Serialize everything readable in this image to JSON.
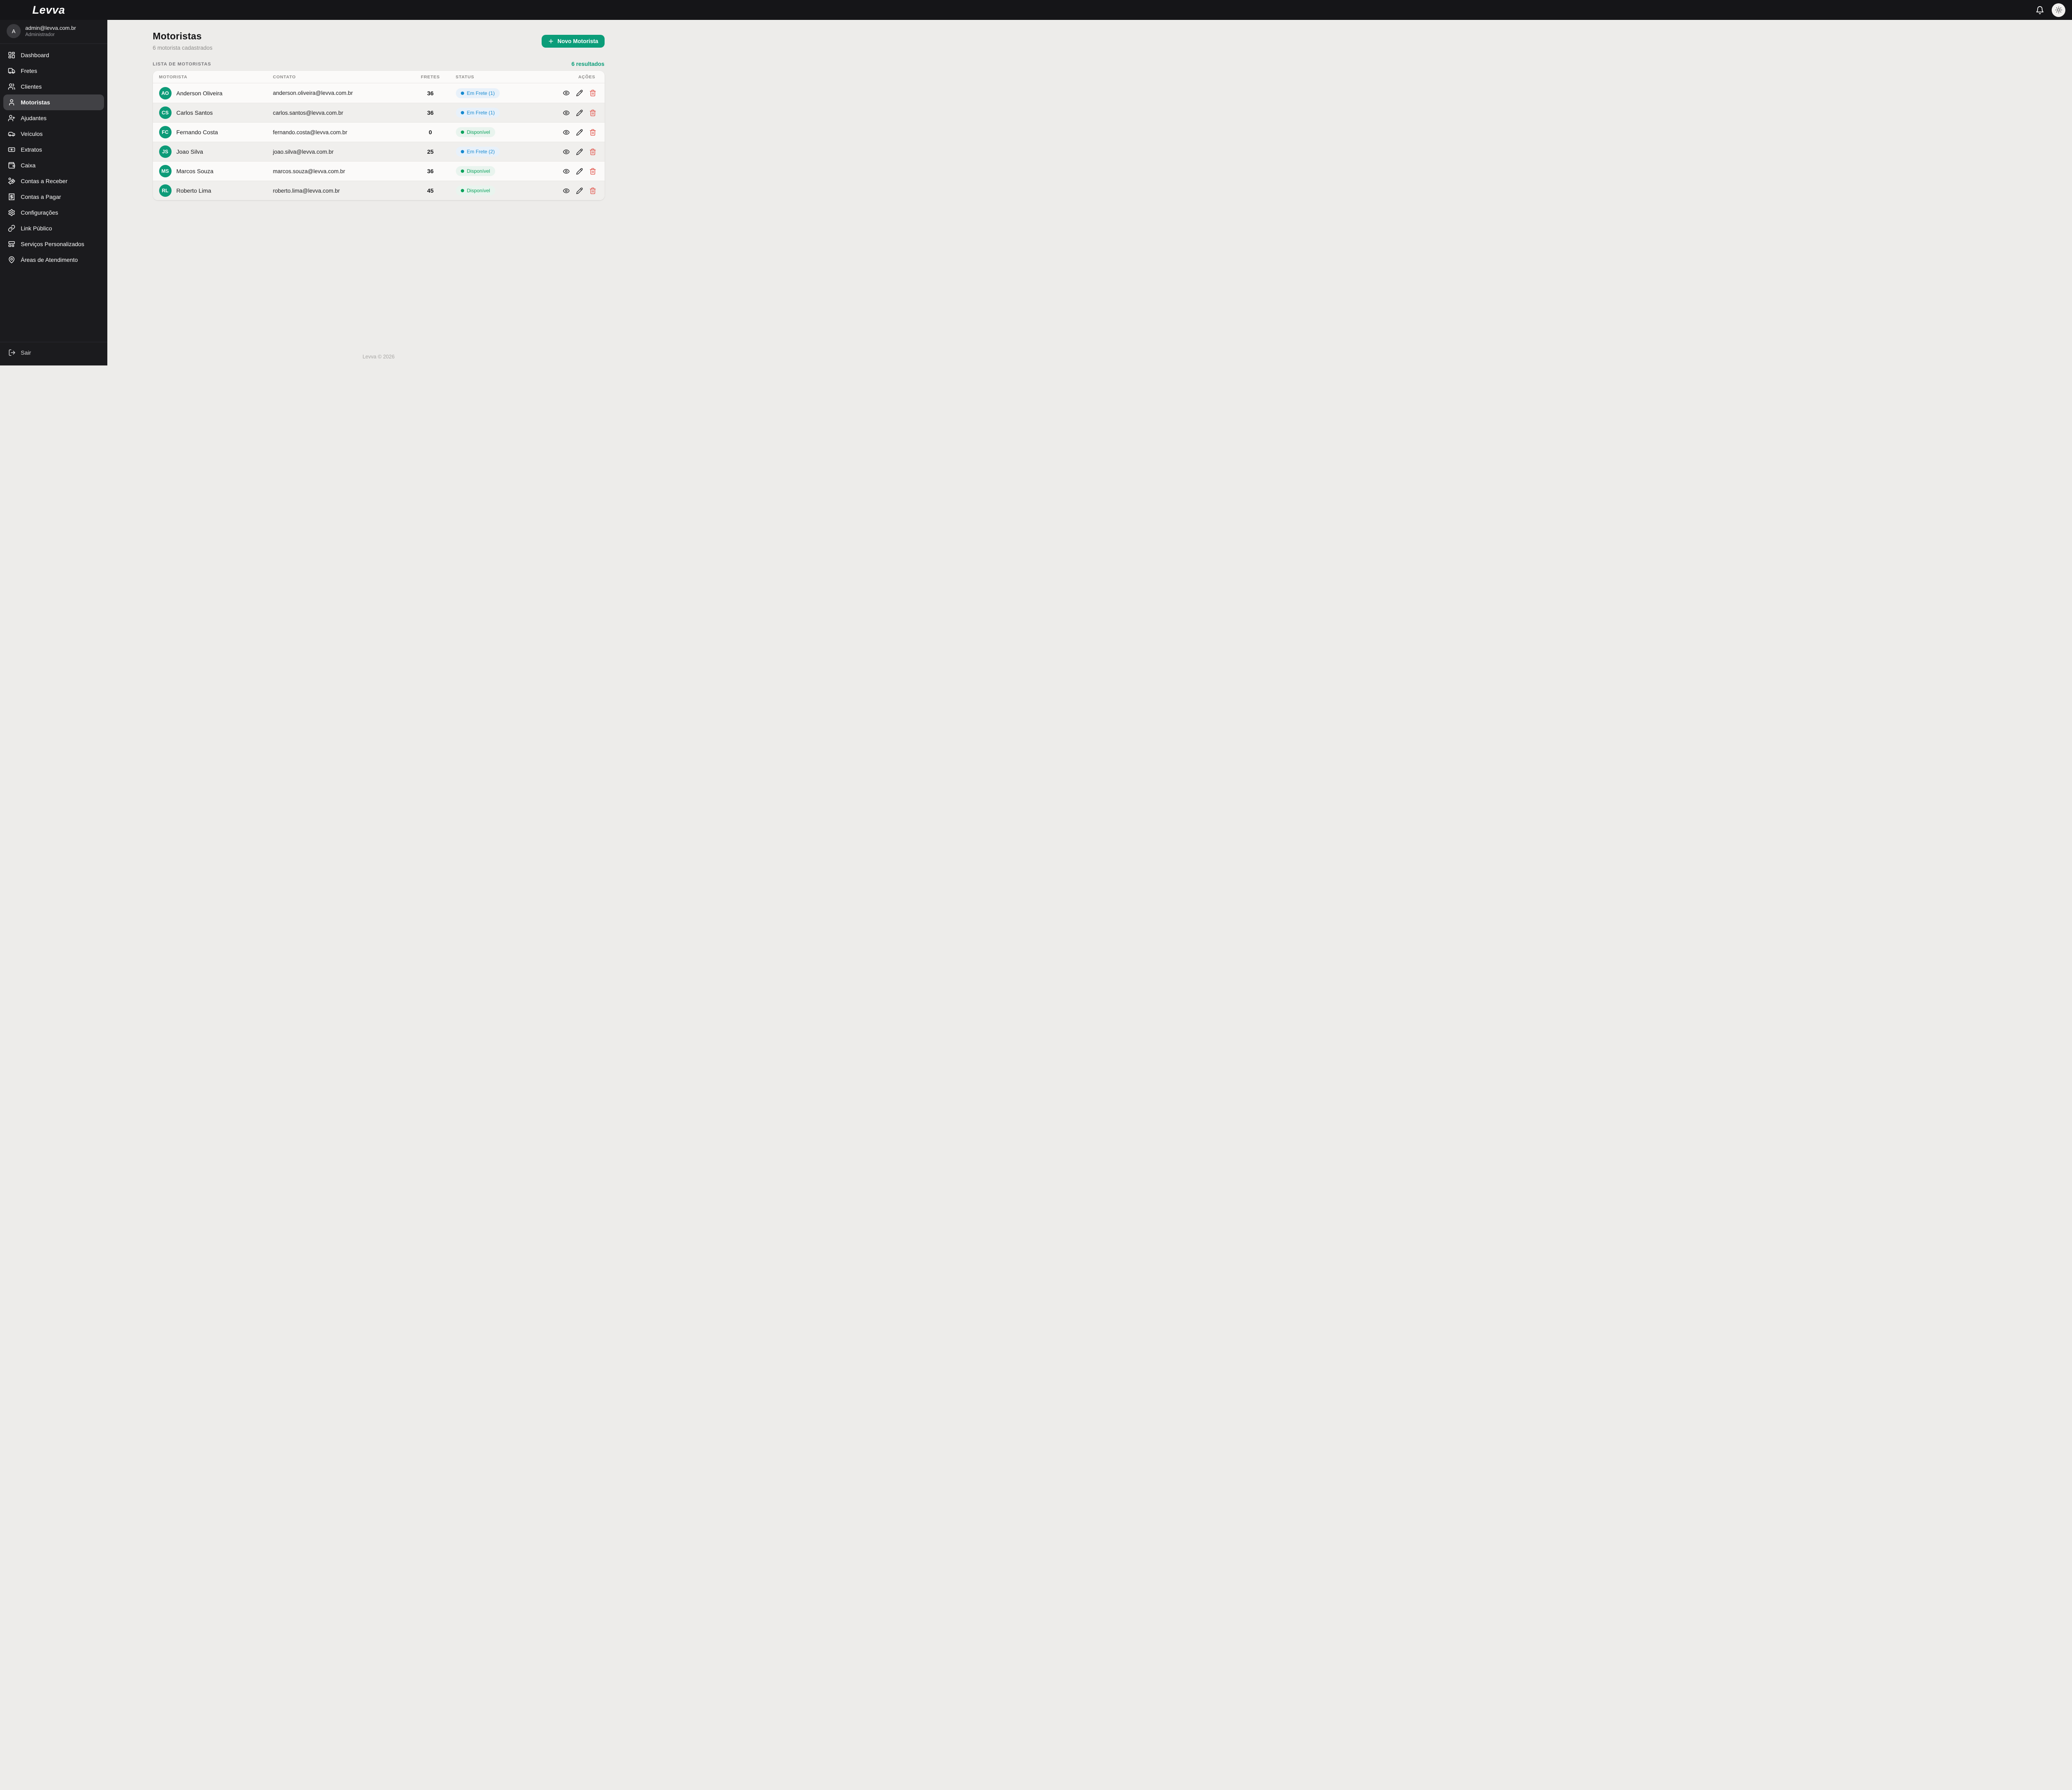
{
  "topbar": {
    "logo": "Levva"
  },
  "sidebar": {
    "user": {
      "initial": "A",
      "email": "admin@levva.com.br",
      "role": "Administrador"
    },
    "items": [
      {
        "icon": "dashboard-icon",
        "label": "Dashboard",
        "active": false
      },
      {
        "icon": "truck-icon",
        "label": "Fretes",
        "active": false
      },
      {
        "icon": "users-icon",
        "label": "Clientes",
        "active": false
      },
      {
        "icon": "user-icon",
        "label": "Motoristas",
        "active": true
      },
      {
        "icon": "user-plus-icon",
        "label": "Ajudantes",
        "active": false
      },
      {
        "icon": "car-icon",
        "label": "Veículos",
        "active": false
      },
      {
        "icon": "banknote-icon",
        "label": "Extratos",
        "active": false
      },
      {
        "icon": "wallet-icon",
        "label": "Caixa",
        "active": false
      },
      {
        "icon": "hand-coins-icon",
        "label": "Contas a Receber",
        "active": false
      },
      {
        "icon": "receipt-icon",
        "label": "Contas a Pagar",
        "active": false
      },
      {
        "icon": "gear-icon",
        "label": "Configurações",
        "active": false
      },
      {
        "icon": "link-icon",
        "label": "Link Público",
        "active": false
      },
      {
        "icon": "panels-icon",
        "label": "Serviços Personalizados",
        "active": false
      },
      {
        "icon": "map-pin-icon",
        "label": "Áreas de Atendimento",
        "active": false
      }
    ],
    "logout_label": "Sair"
  },
  "page": {
    "title": "Motoristas",
    "subtitle": "6 motorista cadastrados",
    "new_button_label": "Novo Motorista",
    "list_label": "LISTA DE MOTORISTAS",
    "results_label": "6 resultados",
    "footer": "Levva © 2026"
  },
  "table": {
    "columns": [
      "MOTORISTA",
      "CONTATO",
      "FRETES",
      "STATUS",
      "AÇÕES"
    ],
    "rows": [
      {
        "initials": "AO",
        "name": "Anderson Oliveira",
        "email": "anderson.oliveira@levva.com.br",
        "fretes": "36",
        "status": "Em Frete (1)",
        "status_type": "busy"
      },
      {
        "initials": "CS",
        "name": "Carlos Santos",
        "email": "carlos.santos@levva.com.br",
        "fretes": "36",
        "status": "Em Frete (1)",
        "status_type": "busy"
      },
      {
        "initials": "FC",
        "name": "Fernando Costa",
        "email": "fernando.costa@levva.com.br",
        "fretes": "0",
        "status": "Disponível",
        "status_type": "available"
      },
      {
        "initials": "JS",
        "name": "Joao Silva",
        "email": "joao.silva@levva.com.br",
        "fretes": "25",
        "status": "Em Frete (2)",
        "status_type": "busy"
      },
      {
        "initials": "MS",
        "name": "Marcos Souza",
        "email": "marcos.souza@levva.com.br",
        "fretes": "36",
        "status": "Disponível",
        "status_type": "available"
      },
      {
        "initials": "RL",
        "name": "Roberto Lima",
        "email": "roberto.lima@levva.com.br",
        "fretes": "45",
        "status": "Disponível",
        "status_type": "available"
      }
    ]
  },
  "colors": {
    "accent_green": "#0b9d79",
    "status_busy": "#1789cf",
    "status_busy_bg": "#e8f1fa",
    "status_available": "#0aa25c",
    "status_available_bg": "#e9f4ee",
    "danger_red": "#e2574e",
    "sidebar_bg": "#1b1b1e",
    "topbar_bg": "#151518",
    "main_bg": "#edecea"
  }
}
